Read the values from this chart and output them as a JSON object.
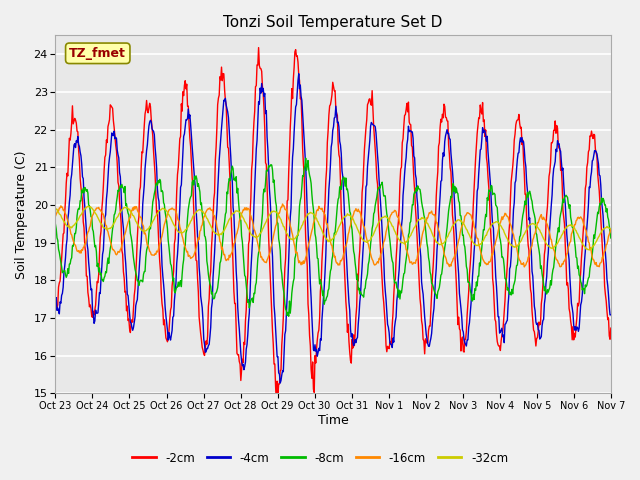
{
  "title": "Tonzi Soil Temperature Set D",
  "xlabel": "Time",
  "ylabel": "Soil Temperature (C)",
  "ylim": [
    15.0,
    24.5
  ],
  "yticks": [
    15.0,
    16.0,
    17.0,
    18.0,
    19.0,
    20.0,
    21.0,
    22.0,
    23.0,
    24.0
  ],
  "xtick_labels": [
    "Oct 23",
    "Oct 24",
    "Oct 25",
    "Oct 26",
    "Oct 27",
    "Oct 28",
    "Oct 29",
    "Oct 30",
    "Oct 31",
    "Nov 1",
    "Nov 2",
    "Nov 3",
    "Nov 4",
    "Nov 5",
    "Nov 6",
    "Nov 7"
  ],
  "series_colors": [
    "#ff0000",
    "#0000cc",
    "#00bb00",
    "#ff8800",
    "#cccc00"
  ],
  "series_labels": [
    "-2cm",
    "-4cm",
    "-8cm",
    "-16cm",
    "-32cm"
  ],
  "annotation_text": "TZ_fmet",
  "annotation_bg": "#ffffaa",
  "annotation_border": "#888800",
  "fig_bg": "#f0f0f0",
  "plot_bg": "#e8e8e8",
  "title_fontsize": 11,
  "n_days": 15,
  "pts_per_day": 48
}
